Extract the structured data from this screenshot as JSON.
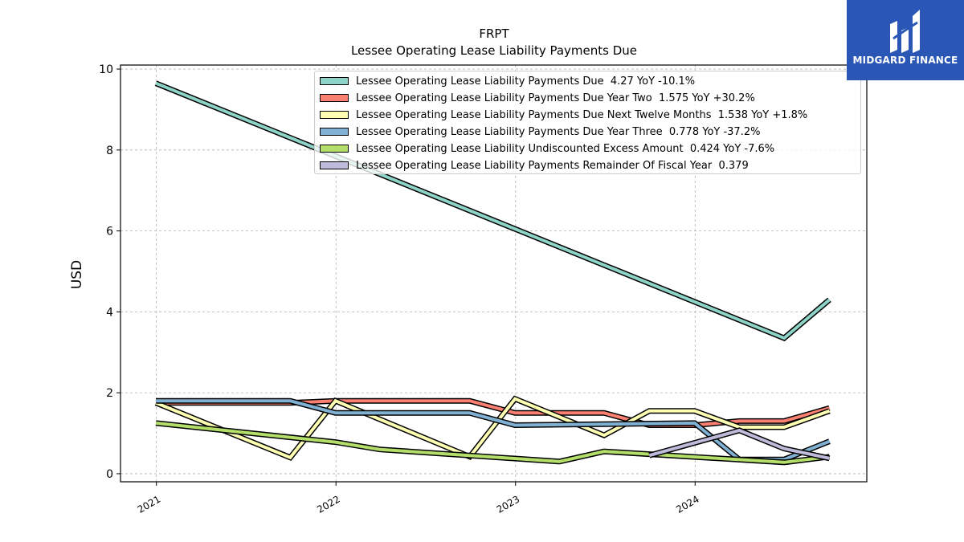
{
  "chart_data": {
    "type": "line",
    "title": "FRPT",
    "subtitle": "Lessee Operating Lease Liability Payments Due",
    "ylabel": "USD",
    "xlabel": "",
    "ylim": [
      -0.2,
      10.1
    ],
    "xlim": [
      "2020-10-20",
      "2024-12-15"
    ],
    "yticks": [
      0,
      2,
      4,
      6,
      8,
      10
    ],
    "xticks": [
      "2021",
      "2022",
      "2023",
      "2024"
    ],
    "grid": true,
    "legend_position": "top-right",
    "series": [
      {
        "name": "Lessee Operating Lease Liability Payments Due  4.27 YoY -10.1%",
        "color": "#8dd3c7",
        "points": [
          [
            "2020-12-31",
            9.65
          ],
          [
            "2024-06-30",
            3.35
          ],
          [
            "2024-09-30",
            4.3
          ]
        ]
      },
      {
        "name": "Lessee Operating Lease Liability Payments Due Year Two  1.575 YoY +30.2%",
        "color": "#fb8072",
        "points": [
          [
            "2020-12-31",
            1.75
          ],
          [
            "2021-09-30",
            1.75
          ],
          [
            "2021-12-31",
            1.8
          ],
          [
            "2022-09-30",
            1.8
          ],
          [
            "2022-12-31",
            1.5
          ],
          [
            "2023-06-30",
            1.5
          ],
          [
            "2023-09-30",
            1.2
          ],
          [
            "2023-12-31",
            1.2
          ],
          [
            "2024-03-31",
            1.3
          ],
          [
            "2024-06-30",
            1.3
          ],
          [
            "2024-09-30",
            1.62
          ]
        ]
      },
      {
        "name": "Lessee Operating Lease Liability Payments Due Next Twelve Months  1.538 YoY +1.8%",
        "color": "#ffffb3",
        "points": [
          [
            "2020-12-31",
            1.75
          ],
          [
            "2021-09-30",
            0.4
          ],
          [
            "2021-12-31",
            1.8
          ],
          [
            "2022-09-30",
            0.42
          ],
          [
            "2022-12-31",
            1.85
          ],
          [
            "2023-06-30",
            0.95
          ],
          [
            "2023-09-30",
            1.55
          ],
          [
            "2023-12-31",
            1.55
          ],
          [
            "2024-03-31",
            1.15
          ],
          [
            "2024-06-30",
            1.15
          ],
          [
            "2024-09-30",
            1.55
          ]
        ]
      },
      {
        "name": "Lessee Operating Lease Liability Payments Due Year Three  0.778 YoY -37.2%",
        "color": "#80b1d3",
        "points": [
          [
            "2020-12-31",
            1.8
          ],
          [
            "2021-09-30",
            1.8
          ],
          [
            "2021-12-31",
            1.5
          ],
          [
            "2022-09-30",
            1.5
          ],
          [
            "2022-12-31",
            1.2
          ],
          [
            "2023-12-31",
            1.25
          ],
          [
            "2024-03-31",
            0.35
          ],
          [
            "2024-06-30",
            0.35
          ],
          [
            "2024-09-30",
            0.8
          ]
        ]
      },
      {
        "name": "Lessee Operating Lease Liability Undiscounted Excess Amount  0.424 YoY -7.6%",
        "color": "#b3de69",
        "points": [
          [
            "2020-12-31",
            1.25
          ],
          [
            "2021-12-31",
            0.78
          ],
          [
            "2022-03-31",
            0.6
          ],
          [
            "2023-03-31",
            0.3
          ],
          [
            "2023-06-30",
            0.55
          ],
          [
            "2024-06-30",
            0.28
          ],
          [
            "2024-09-30",
            0.42
          ]
        ]
      },
      {
        "name": "Lessee Operating Lease Liability Payments Remainder Of Fiscal Year  0.379",
        "color": "#bebada",
        "points": [
          [
            "2023-09-30",
            0.45
          ],
          [
            "2024-03-31",
            1.07
          ],
          [
            "2024-06-30",
            0.62
          ],
          [
            "2024-09-30",
            0.38
          ]
        ]
      }
    ]
  },
  "logo": {
    "text": "MIDGARD FINANCE",
    "background": "#2a57b5"
  }
}
